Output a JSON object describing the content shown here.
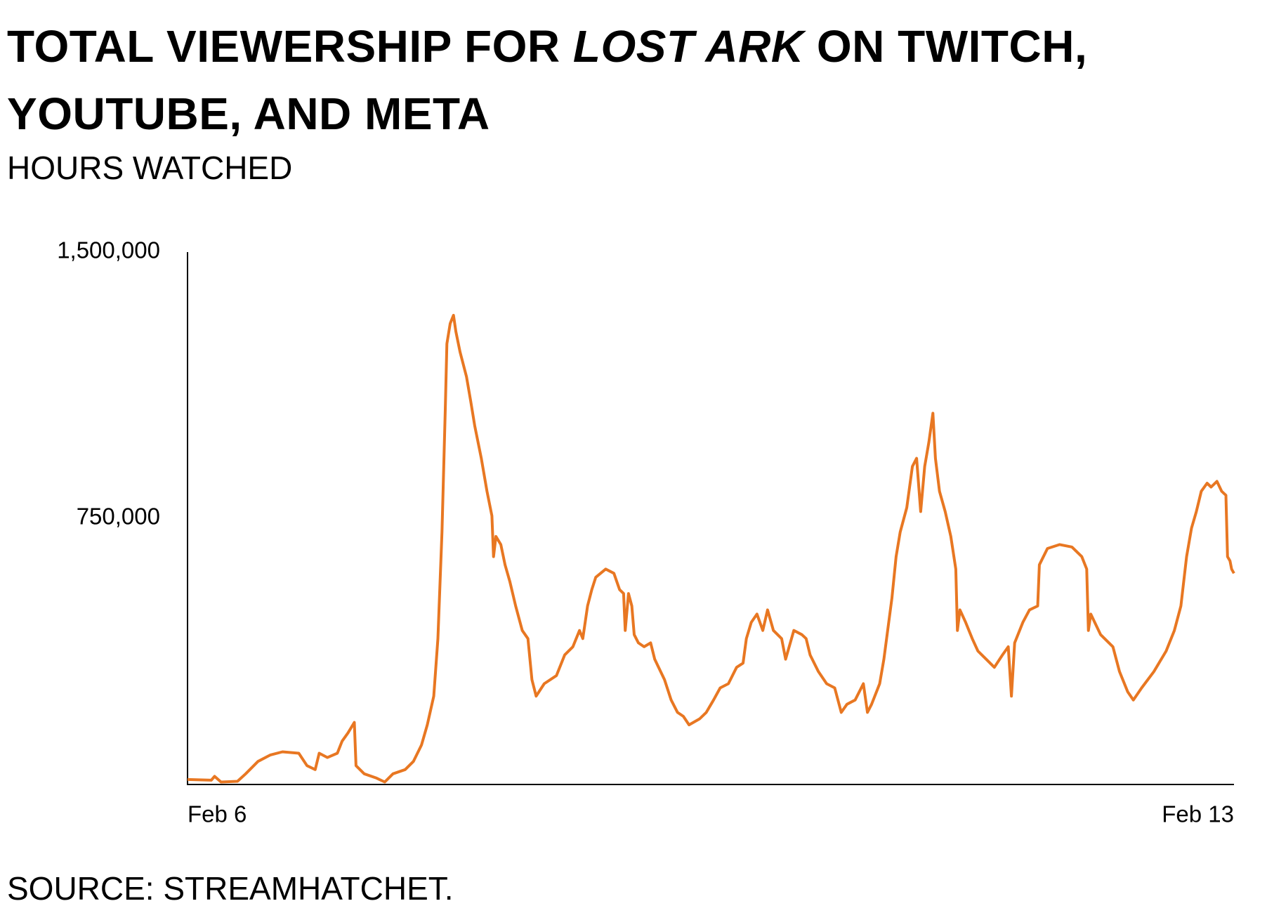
{
  "chart_data": {
    "type": "line",
    "title": [
      "TOTAL VIEWERSHIP FOR",
      "LOST ARK",
      "ON TWITCH, YOUTUBE, AND META"
    ],
    "subtitle": "HOURS WATCHED",
    "source": "SOURCE: STREAMHATCHET.",
    "xlim": [
      6,
      13
    ],
    "xticks": [
      {
        "value": 6,
        "label": "Feb 6"
      },
      {
        "value": 13,
        "label": "Feb 13"
      }
    ],
    "ylim": [
      0,
      1500000
    ],
    "yticks": [
      {
        "value": 1500000,
        "label": "1,500,000"
      },
      {
        "value": 750000,
        "label": "750,000"
      }
    ],
    "grid": false,
    "x": [
      6.0,
      6.159,
      6.181,
      6.224,
      6.334,
      6.389,
      6.471,
      6.553,
      6.635,
      6.744,
      6.799,
      6.854,
      6.881,
      6.936,
      7.002,
      7.034,
      7.073,
      7.116,
      7.127,
      7.182,
      7.264,
      7.319,
      7.374,
      7.456,
      7.511,
      7.565,
      7.604,
      7.647,
      7.675,
      7.702,
      7.724,
      7.735,
      7.757,
      7.779,
      7.795,
      7.823,
      7.866,
      7.894,
      7.921,
      7.965,
      8.003,
      8.036,
      8.047,
      8.063,
      8.096,
      8.124,
      8.156,
      8.195,
      8.239,
      8.277,
      8.304,
      8.332,
      8.386,
      8.468,
      8.523,
      8.578,
      8.622,
      8.644,
      8.676,
      8.704,
      8.731,
      8.797,
      8.852,
      8.89,
      8.917,
      8.928,
      8.95,
      8.972,
      8.988,
      9.016,
      9.054,
      9.098,
      9.125,
      9.191,
      9.235,
      9.278,
      9.317,
      9.355,
      9.426,
      9.47,
      9.519,
      9.563,
      9.618,
      9.673,
      9.716,
      9.738,
      9.771,
      9.809,
      9.848,
      9.88,
      9.919,
      9.974,
      10.001,
      10.056,
      10.11,
      10.138,
      10.165,
      10.22,
      10.275,
      10.329,
      10.373,
      10.411,
      10.466,
      10.521,
      10.548,
      10.576,
      10.63,
      10.658,
      10.712,
      10.74,
      10.767,
      10.811,
      10.849,
      10.877,
      10.904,
      10.931,
      10.959,
      10.986,
      11.003,
      11.03,
      11.068,
      11.106,
      11.139,
      11.15,
      11.167,
      11.205,
      11.249,
      11.287,
      11.342,
      11.397,
      11.451,
      11.49,
      11.511,
      11.533,
      11.588,
      11.632,
      11.687,
      11.698,
      11.752,
      11.834,
      11.916,
      11.982,
      12.015,
      12.026,
      12.042,
      12.108,
      12.19,
      12.234,
      12.289,
      12.327,
      12.382,
      12.464,
      12.546,
      12.601,
      12.645,
      12.683,
      12.716,
      12.748,
      12.781,
      12.82,
      12.847,
      12.886,
      12.918,
      12.946,
      12.957,
      12.973,
      12.984,
      13.0
    ],
    "series": [
      {
        "color": "#e87722",
        "values": [
          14000,
          12000,
          23000,
          7000,
          9000,
          30000,
          65000,
          83000,
          92000,
          88000,
          53000,
          42000,
          88000,
          76000,
          88000,
          122000,
          145000,
          175000,
          53000,
          30000,
          18000,
          7000,
          30000,
          42000,
          65000,
          111000,
          168000,
          249000,
          411000,
          711000,
          1057000,
          1242000,
          1299000,
          1322000,
          1276000,
          1219000,
          1149000,
          1080000,
          1011000,
          919000,
          826000,
          757000,
          642000,
          699000,
          676000,
          619000,
          572000,
          503000,
          434000,
          411000,
          295000,
          249000,
          284000,
          307000,
          365000,
          388000,
          434000,
          411000,
          503000,
          549000,
          584000,
          607000,
          595000,
          549000,
          538000,
          434000,
          538000,
          503000,
          422000,
          399000,
          388000,
          399000,
          353000,
          295000,
          238000,
          203000,
          192000,
          168000,
          185000,
          203000,
          238000,
          272000,
          284000,
          330000,
          342000,
          411000,
          457000,
          480000,
          434000,
          492000,
          434000,
          411000,
          353000,
          434000,
          422000,
          411000,
          365000,
          318000,
          284000,
          272000,
          203000,
          226000,
          238000,
          284000,
          203000,
          226000,
          284000,
          353000,
          526000,
          642000,
          711000,
          780000,
          896000,
          919000,
          769000,
          896000,
          965000,
          1046000,
          919000,
          826000,
          769000,
          699000,
          607000,
          434000,
          492000,
          457000,
          411000,
          376000,
          353000,
          330000,
          365000,
          388000,
          249000,
          399000,
          457000,
          492000,
          503000,
          619000,
          665000,
          676000,
          669000,
          642000,
          607000,
          434000,
          480000,
          422000,
          388000,
          318000,
          261000,
          238000,
          272000,
          318000,
          376000,
          434000,
          503000,
          642000,
          722000,
          769000,
          826000,
          849000,
          838000,
          854000,
          826000,
          815000,
          642000,
          630000,
          607000,
          595000
        ]
      }
    ]
  }
}
